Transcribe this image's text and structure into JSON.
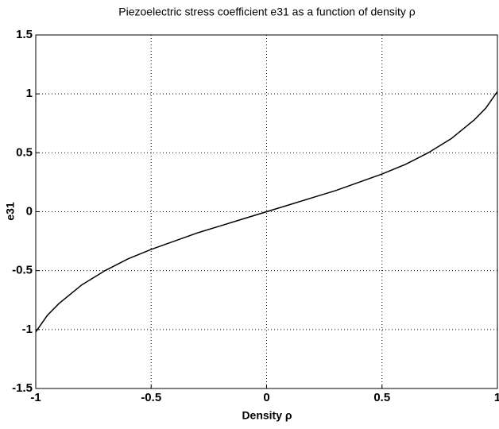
{
  "chart_data": {
    "type": "line",
    "title": "Piezoelectric stress coefficient e31 as a function of density ρ",
    "xlabel": "Density ρ",
    "ylabel": "e31",
    "x": [
      -1,
      -0.95,
      -0.9,
      -0.8,
      -0.7,
      -0.6,
      -0.5,
      -0.4,
      -0.3,
      -0.2,
      -0.1,
      0,
      0.1,
      0.2,
      0.3,
      0.4,
      0.5,
      0.6,
      0.7,
      0.8,
      0.9,
      0.95,
      1
    ],
    "series": [
      {
        "color": "#000000",
        "values": [
          -1.02,
          -0.88,
          -0.78,
          -0.62,
          -0.5,
          -0.4,
          -0.32,
          -0.25,
          -0.18,
          -0.12,
          -0.06,
          0,
          0.06,
          0.12,
          0.18,
          0.25,
          0.32,
          0.4,
          0.5,
          0.62,
          0.78,
          0.88,
          1.02
        ]
      }
    ],
    "xlim": [
      -1,
      1
    ],
    "ylim": [
      -1.5,
      1.5
    ],
    "xticks": [
      -1,
      -0.5,
      0,
      0.5,
      1
    ],
    "yticks": [
      -1.5,
      -1,
      -0.5,
      0,
      0.5,
      1,
      1.5
    ],
    "grid": true
  }
}
